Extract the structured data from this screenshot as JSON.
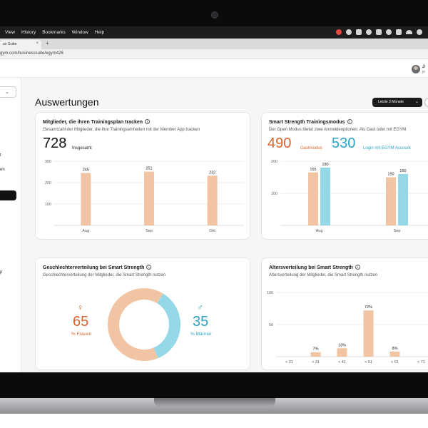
{
  "browser": {
    "menu": [
      "View",
      "History",
      "Bookmarks",
      "Window",
      "Help"
    ],
    "tab_title": "ss Suite",
    "new_tab": "+",
    "tab_close": "×",
    "url": "gym.com/businesssuite/egym428"
  },
  "header": {
    "user_initial": "J",
    "user_sub": "je"
  },
  "sidebar": {
    "items": [
      "t",
      "en",
      "p"
    ]
  },
  "page": {
    "title": "Auswertungen",
    "range_label": "Letzte 3 Monate"
  },
  "colors": {
    "accent_orange": "#d9642a",
    "accent_blue": "#2aa3c7",
    "bar_peach": "#f1c5a3",
    "bar_blue": "#94d7e7"
  },
  "cards": {
    "training": {
      "title": "Mitglieder, die ihren Trainingsplan tracken",
      "subtitle": "Gesamtzahl der Mitglieder, die ihre Trainingseinheiten mit der Member App tracken",
      "total": "728",
      "total_label": "Insgesamt"
    },
    "smart_strength": {
      "title": "Smart Strength Trainingsmodus",
      "subtitle": "Der Open Modus bietet zwei Anmeldeoptionen: Als Gast oder mit EGYM",
      "guest_value": "490",
      "guest_label": "Gastmodus",
      "egym_value": "530",
      "egym_label": "Login mit EGYM Account"
    },
    "gender": {
      "title": "Geschlechterverteilung bei Smart Strength",
      "subtitle": "Geschlechterverteilung der Mitglieder, die Smart Strength nutzen",
      "female_symbol": "♀",
      "female_value": "65",
      "female_label": "% Frauen",
      "male_symbol": "♂",
      "male_value": "35",
      "male_label": "% Männer"
    },
    "age": {
      "title": "Altersverteilung bei Smart Strength",
      "subtitle": "Altersverteilung der Mitglieder, die Smart Strength nutzen"
    }
  },
  "chart_data": [
    {
      "type": "bar",
      "categories": [
        "Aug",
        "Sep",
        "Okt"
      ],
      "values": [
        245,
        251,
        232
      ],
      "ylim": [
        0,
        300
      ],
      "yticks": [
        100,
        200,
        300
      ],
      "grid": true
    },
    {
      "type": "bar",
      "categories": [
        "Aug",
        "Sep"
      ],
      "series": [
        {
          "values": [
            165,
            150
          ]
        },
        {
          "values": [
            180,
            160
          ]
        }
      ],
      "ylim": [
        0,
        200
      ],
      "yticks": [
        100,
        200
      ],
      "grid": true
    },
    {
      "type": "pie",
      "categories": [
        "% Frauen",
        "% Männer"
      ],
      "values": [
        65,
        35
      ]
    },
    {
      "type": "bar",
      "categories": [
        "< 21",
        "< 31",
        "< 41",
        "< 51",
        "< 61",
        "< 71"
      ],
      "values": [
        0,
        7,
        13,
        72,
        8,
        0
      ],
      "value_labels": [
        "",
        "7%",
        "13%",
        "72%",
        "8%",
        ""
      ],
      "ylim": [
        0,
        100
      ],
      "yticks": [
        50,
        100
      ],
      "grid": true
    }
  ]
}
